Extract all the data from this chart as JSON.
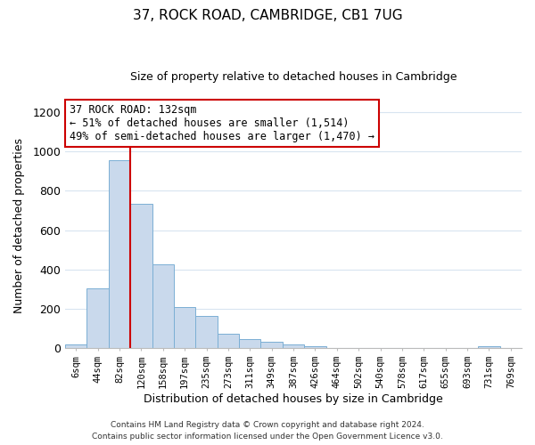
{
  "title": "37, ROCK ROAD, CAMBRIDGE, CB1 7UG",
  "subtitle": "Size of property relative to detached houses in Cambridge",
  "xlabel": "Distribution of detached houses by size in Cambridge",
  "ylabel": "Number of detached properties",
  "bin_labels": [
    "6sqm",
    "44sqm",
    "82sqm",
    "120sqm",
    "158sqm",
    "197sqm",
    "235sqm",
    "273sqm",
    "311sqm",
    "349sqm",
    "387sqm",
    "426sqm",
    "464sqm",
    "502sqm",
    "540sqm",
    "578sqm",
    "617sqm",
    "655sqm",
    "693sqm",
    "731sqm",
    "769sqm"
  ],
  "bar_heights": [
    20,
    305,
    955,
    735,
    425,
    210,
    165,
    73,
    48,
    33,
    20,
    10,
    0,
    0,
    0,
    0,
    0,
    0,
    0,
    10,
    0
  ],
  "bar_color": "#c9d9ec",
  "bar_edge_color": "#7bafd4",
  "highlight_line_color": "#cc0000",
  "annotation_line1": "37 ROCK ROAD: 132sqm",
  "annotation_line2": "← 51% of detached houses are smaller (1,514)",
  "annotation_line3": "49% of semi-detached houses are larger (1,470) →",
  "annotation_box_color": "#ffffff",
  "annotation_box_edge_color": "#cc0000",
  "footer_line1": "Contains HM Land Registry data © Crown copyright and database right 2024.",
  "footer_line2": "Contains public sector information licensed under the Open Government Licence v3.0.",
  "ylim": [
    0,
    1250
  ],
  "yticks": [
    0,
    200,
    400,
    600,
    800,
    1000,
    1200
  ],
  "grid_color": "#d8e4f0",
  "background_color": "#ffffff"
}
